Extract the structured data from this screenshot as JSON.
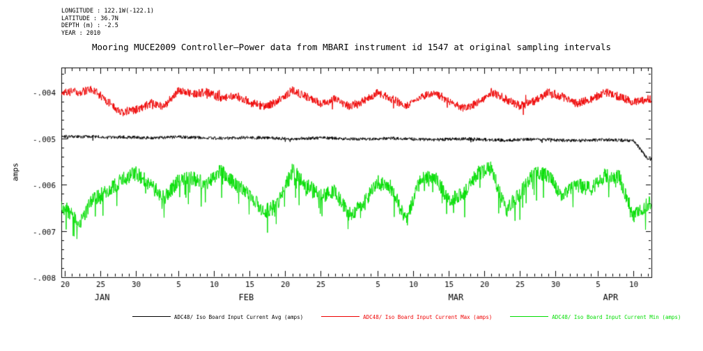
{
  "meta": {
    "lines": [
      "LONGITUDE : 122.1W(-122.1)",
      "LATITUDE : 36.7N",
      "DEPTH (m) : -2.5",
      "YEAR : 2010"
    ]
  },
  "chart_data": {
    "type": "line",
    "title": "Mooring MUCE2009 Controller—Power data from MBARI instrument id 1547 at original sampling intervals",
    "ylabel": "amps",
    "year": 2010,
    "ylim": [
      -0.008,
      -0.00347
    ],
    "xlim_day_of_year": [
      19.5,
      102.5
    ],
    "grid": false,
    "legend_position": "bottom",
    "y_ticks": {
      "major": [
        {
          "value": -0.004,
          "label": "-.004"
        },
        {
          "value": -0.005,
          "label": "-.005"
        },
        {
          "value": -0.006,
          "label": "-.006"
        },
        {
          "value": -0.007,
          "label": "-.007"
        },
        {
          "value": -0.008,
          "label": "-.008"
        }
      ],
      "minor_step": 0.0002
    },
    "x_axis": {
      "months": [
        {
          "label": "JAN",
          "start": 1,
          "end": 31
        },
        {
          "label": "FEB",
          "start": 32,
          "end": 59
        },
        {
          "label": "MAR",
          "start": 60,
          "end": 90
        },
        {
          "label": "APR",
          "start": 91,
          "end": 120
        }
      ],
      "major_every_days": 5,
      "minor_every_days": 1,
      "visible_major_labels": [
        "20",
        "25",
        "30",
        "5",
        "10",
        "15",
        "20",
        "25",
        "5",
        "10",
        "15",
        "20",
        "25",
        "30",
        "5",
        "10"
      ]
    },
    "sample_days": {
      "start": 20,
      "step": 2
    },
    "series": [
      {
        "name": "ADC48/ Iso Board Input Current Avg (amps)",
        "color": "#000000",
        "jitter": 3.5e-05,
        "spike_prob": 0.008,
        "spike_max": 0.0001,
        "spike_dir": -1,
        "seed": 101,
        "centers": [
          -0.00495,
          -0.00497,
          -0.00496,
          -0.00498,
          -0.00497,
          -0.00498,
          -0.00499,
          -0.00498,
          -0.00497,
          -0.00498,
          -0.00499,
          -0.005,
          -0.00499,
          -0.00498,
          -0.00499,
          -0.005,
          -0.00501,
          -0.005,
          -0.00499,
          -0.005,
          -0.00501,
          -0.00502,
          -0.00501,
          -0.005,
          -0.00501,
          -0.00502,
          -0.00503,
          -0.00502,
          -0.00501,
          -0.00502,
          -0.00503,
          -0.00504,
          -0.00503,
          -0.00502,
          -0.00503,
          -0.00504,
          -0.00505,
          -0.00504,
          -0.00503,
          -0.00504,
          -0.00505,
          -0.00545
        ]
      },
      {
        "name": "ADC48/ Iso Board Input Current Max (amps)",
        "color": "#ee0000",
        "jitter": 9e-05,
        "spike_prob": 0.02,
        "spike_max": 0.00018,
        "spike_dir": 0,
        "seed": 202,
        "centers": [
          -0.004,
          -0.004,
          -0.00395,
          -0.0042,
          -0.00445,
          -0.00438,
          -0.00425,
          -0.0043,
          -0.00396,
          -0.00405,
          -0.004,
          -0.00415,
          -0.00408,
          -0.0042,
          -0.00432,
          -0.0042,
          -0.00396,
          -0.0041,
          -0.00425,
          -0.00415,
          -0.0043,
          -0.0042,
          -0.004,
          -0.00415,
          -0.0043,
          -0.0041,
          -0.004,
          -0.0042,
          -0.00435,
          -0.00425,
          -0.004,
          -0.00415,
          -0.0043,
          -0.0042,
          -0.004,
          -0.0041,
          -0.00425,
          -0.00415,
          -0.004,
          -0.0041,
          -0.00422,
          -0.00415
        ]
      },
      {
        "name": "ADC48/ Iso Board Input Current Min (amps)",
        "color": "#00dd00",
        "jitter": 0.00016,
        "spike_prob": 0.06,
        "spike_max": 0.00055,
        "spike_dir": -1,
        "seed": 303,
        "centers": [
          -0.0065,
          -0.00685,
          -0.0063,
          -0.00615,
          -0.0059,
          -0.00575,
          -0.006,
          -0.0063,
          -0.0059,
          -0.00585,
          -0.006,
          -0.0057,
          -0.006,
          -0.0062,
          -0.0066,
          -0.0064,
          -0.0057,
          -0.006,
          -0.00625,
          -0.00615,
          -0.00665,
          -0.0064,
          -0.00595,
          -0.00605,
          -0.0068,
          -0.0059,
          -0.0058,
          -0.00635,
          -0.0062,
          -0.00575,
          -0.00565,
          -0.00655,
          -0.0062,
          -0.00575,
          -0.0058,
          -0.00625,
          -0.006,
          -0.0061,
          -0.0058,
          -0.00585,
          -0.0067,
          -0.0064
        ]
      }
    ]
  }
}
